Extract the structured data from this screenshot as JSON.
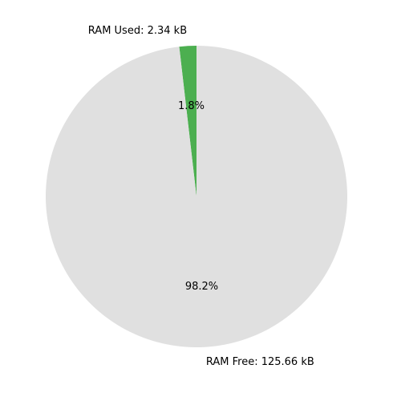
{
  "chart_data": {
    "type": "pie",
    "title": "",
    "slices": [
      {
        "label": "RAM Used: 2.34 kB",
        "value": 2.34,
        "percent_label": "1.8%",
        "color": "#4caf50"
      },
      {
        "label": "RAM Free: 125.66 kB",
        "value": 125.66,
        "percent_label": "98.2%",
        "color": "#e0e0e0"
      }
    ],
    "start_angle": "top",
    "direction": "counterclockwise"
  }
}
